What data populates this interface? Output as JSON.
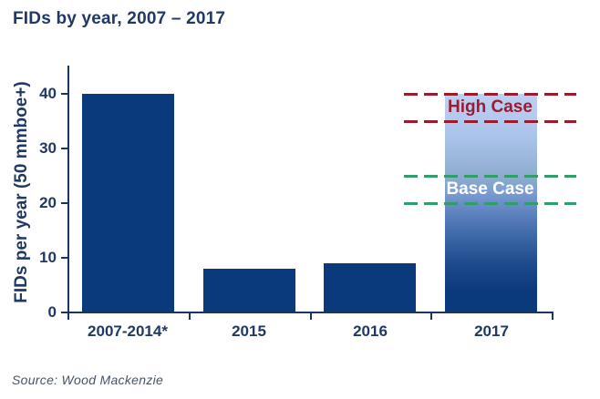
{
  "title": "FIDs by year, 2007 – 2017",
  "source": "Source: Wood Mackenzie",
  "colors": {
    "bar": "#0a3a7c",
    "axis": "#17375e",
    "text": "#1f3864",
    "high_case_line": "#9a1b2e",
    "high_case_text": "#9e1b30",
    "base_case_line": "#2f9e68",
    "base_case_text": "#ffffff",
    "gradient_top": "#bdd0f2",
    "source_text": "#44546a"
  },
  "chart_data": {
    "type": "bar",
    "title": "FIDs by year, 2007 – 2017",
    "categories": [
      "2007-2014*",
      "2015",
      "2016",
      "2017"
    ],
    "values": [
      40,
      8,
      9,
      40
    ],
    "xlabel": "",
    "ylabel": "FIDs per year (50 mmboe+)",
    "ylim": [
      0,
      45
    ],
    "yticks": [
      0,
      10,
      20,
      30,
      40
    ],
    "grid": false,
    "legend_position": "none",
    "bar_styles": [
      "solid",
      "solid",
      "solid",
      "gradient-range"
    ],
    "annotations": [
      {
        "label": "High Case",
        "upper": 40,
        "lower": 35,
        "line_color": "#9a1b2e",
        "text_color": "#9e1b30",
        "style": "dashed"
      },
      {
        "label": "Base Case",
        "upper": 25,
        "lower": 20,
        "line_color": "#2f9e68",
        "text_color": "#ffffff",
        "style": "dashed"
      }
    ]
  }
}
